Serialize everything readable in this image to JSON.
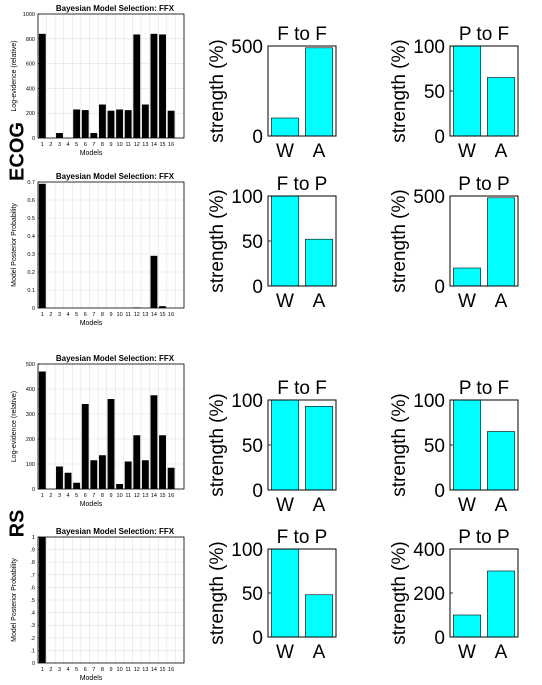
{
  "groups": {
    "top": "ECOG",
    "bottom": "RS"
  },
  "chart_data": [
    {
      "id": "ecog-logev",
      "type": "bar",
      "title": "Bayesian Model Selection: FFX",
      "xlabel": "Models",
      "ylabel": "Log-evidence (relative)",
      "categories": [
        "1",
        "2",
        "3",
        "4",
        "5",
        "6",
        "7",
        "8",
        "9",
        "10",
        "11",
        "12",
        "13",
        "14",
        "15",
        "16"
      ],
      "xticklabels": [
        "1",
        "2",
        "3",
        "4",
        "5",
        "6",
        "7",
        "8",
        "9",
        "10",
        "11",
        "12",
        "13",
        "14",
        "15",
        "16"
      ],
      "values": [
        840,
        0,
        40,
        0,
        230,
        225,
        40,
        270,
        220,
        230,
        225,
        835,
        270,
        840,
        835,
        220
      ],
      "ylim": [
        0,
        1000
      ],
      "yticks": [
        0,
        200,
        400,
        600,
        800,
        1000
      ],
      "grid": true
    },
    {
      "id": "ecog-f-to-f",
      "type": "bar",
      "title": "F to F",
      "categories": [
        "W",
        "A"
      ],
      "values": [
        100,
        490
      ],
      "ylabel": "strength (%)",
      "ylim": [
        0,
        500
      ],
      "yticks": [
        0,
        500
      ]
    },
    {
      "id": "ecog-p-to-f",
      "type": "bar",
      "title": "P to F",
      "categories": [
        "W",
        "A"
      ],
      "values": [
        100,
        65
      ],
      "ylabel": "strength (%)",
      "ylim": [
        0,
        100
      ],
      "yticks": [
        0,
        50,
        100
      ]
    },
    {
      "id": "ecog-postprob",
      "type": "bar",
      "title": "Bayesian Model Selection: FFX",
      "xlabel": "Models",
      "ylabel": "Model Posterior Probability",
      "categories": [
        "1",
        "2",
        "3",
        "4",
        "5",
        "6",
        "7",
        "8",
        "9",
        "10",
        "11",
        "12",
        "13",
        "14",
        "15",
        "16"
      ],
      "xticklabels": [
        "1",
        "2",
        "3",
        "4",
        "5",
        "6",
        "7",
        "8",
        "9",
        "10",
        "11",
        "12",
        "13",
        "14",
        "15",
        "16"
      ],
      "values": [
        0.69,
        0,
        0,
        0,
        0,
        0,
        0,
        0,
        0,
        0,
        0,
        0.003,
        0,
        0.29,
        0.01,
        0
      ],
      "ylim": [
        0,
        0.7
      ],
      "yticks": [
        0,
        0.1,
        0.2,
        0.3,
        0.4,
        0.5,
        0.6,
        0.7
      ],
      "yticklabels": [
        "0",
        "0.1",
        "0.2",
        "0.3",
        "0.4",
        "0.5",
        "0.6",
        "0.7"
      ],
      "grid": true
    },
    {
      "id": "ecog-f-to-p",
      "type": "bar",
      "title": "F to P",
      "categories": [
        "W",
        "A"
      ],
      "values": [
        100,
        52
      ],
      "ylabel": "strength (%)",
      "ylim": [
        0,
        100
      ],
      "yticks": [
        0,
        50,
        100
      ]
    },
    {
      "id": "ecog-p-to-p",
      "type": "bar",
      "title": "P to P",
      "categories": [
        "W",
        "A"
      ],
      "values": [
        100,
        490
      ],
      "ylabel": "strength (%)",
      "ylim": [
        0,
        500
      ],
      "yticks": [
        0,
        500
      ]
    },
    {
      "id": "rs-logev",
      "type": "bar",
      "title": "Bayesian Model Selection: FFX",
      "xlabel": "Models",
      "ylabel": "Log-evidence (relative)",
      "categories": [
        "1",
        "2",
        "3",
        "4",
        "5",
        "6",
        "7",
        "8",
        "9",
        "10",
        "11",
        "12",
        "13",
        "14",
        "15",
        "16"
      ],
      "xticklabels": [
        "1",
        "2",
        "3",
        "4",
        "5",
        "6",
        "7",
        "8",
        "9",
        "10",
        "11",
        "12",
        "13",
        "14",
        "15",
        "16"
      ],
      "values": [
        470,
        0,
        90,
        65,
        25,
        340,
        115,
        135,
        360,
        20,
        110,
        215,
        115,
        375,
        215,
        85
      ],
      "ylim": [
        0,
        500
      ],
      "yticks": [
        0,
        100,
        200,
        300,
        400,
        500
      ],
      "grid": true
    },
    {
      "id": "rs-f-to-f",
      "type": "bar",
      "title": "F to F",
      "categories": [
        "W",
        "A"
      ],
      "values": [
        100,
        93
      ],
      "ylabel": "strength (%)",
      "ylim": [
        0,
        100
      ],
      "yticks": [
        0,
        50,
        100
      ]
    },
    {
      "id": "rs-p-to-f",
      "type": "bar",
      "title": "P to F",
      "categories": [
        "W",
        "A"
      ],
      "values": [
        100,
        65
      ],
      "ylabel": "strength (%)",
      "ylim": [
        0,
        100
      ],
      "yticks": [
        0,
        50,
        100
      ]
    },
    {
      "id": "rs-postprob",
      "type": "bar",
      "title": "Bayesian Model Selection: FFX",
      "xlabel": "Models",
      "ylabel": "Model Posterior Probability",
      "categories": [
        "1",
        "2",
        "3",
        "4",
        "5",
        "6",
        "7",
        "8",
        "9",
        "10",
        "11",
        "12",
        "13",
        "14",
        "15",
        "16"
      ],
      "xticklabels": [
        "1",
        "2",
        "3",
        "4",
        "5",
        "6",
        "7",
        "8",
        "9",
        "10",
        "11",
        "12",
        "13",
        "14",
        "15",
        "16"
      ],
      "values": [
        1,
        0,
        0,
        0,
        0,
        0,
        0,
        0,
        0,
        0,
        0,
        0,
        0,
        0,
        0,
        0
      ],
      "ylim": [
        0,
        1
      ],
      "yticks": [
        0,
        0.1,
        0.2,
        0.3,
        0.4,
        0.5,
        0.6,
        0.7,
        0.8,
        0.9,
        1
      ],
      "yticklabels": [
        "0",
        ".1",
        ".2",
        ".3",
        ".4",
        ".5",
        ".6",
        ".7",
        ".8",
        ".9",
        "1"
      ],
      "grid": true
    },
    {
      "id": "rs-f-to-p",
      "type": "bar",
      "title": "F to P",
      "categories": [
        "W",
        "A"
      ],
      "values": [
        100,
        48
      ],
      "ylabel": "strength (%)",
      "ylim": [
        0,
        100
      ],
      "yticks": [
        0,
        50,
        100
      ]
    },
    {
      "id": "rs-p-to-p",
      "type": "bar",
      "title": "P to P",
      "categories": [
        "W",
        "A"
      ],
      "values": [
        100,
        300
      ],
      "ylabel": "strength (%)",
      "ylim": [
        0,
        400
      ],
      "yticks": [
        0,
        200,
        400
      ]
    }
  ],
  "colors": {
    "bms_bar": "#000000",
    "strength_bar": "#00ffff",
    "grid": "#e0e0e0"
  }
}
